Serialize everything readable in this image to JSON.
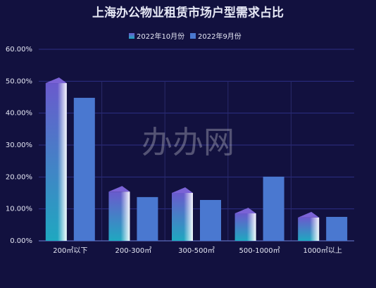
{
  "chart_data": {
    "type": "bar",
    "title": "上海办公物业租赁市场户型需求占比",
    "watermark": "办办网",
    "categories": [
      "200㎡以下",
      "200-300㎡",
      "300-500㎡",
      "500-1000㎡",
      "1000㎡以上"
    ],
    "series": [
      {
        "name": "2022年10月份",
        "color": "#6a5acd",
        "values": [
          49.4,
          15.4,
          15,
          8.6,
          7.3
        ]
      },
      {
        "name": "2022年9月份",
        "color": "#4a78d0",
        "values": [
          44.8,
          13.7,
          12.8,
          20.1,
          7.5
        ]
      }
    ],
    "ylim": [
      0,
      60
    ],
    "yticks": [
      {
        "value": 0,
        "label": "0.00%"
      },
      {
        "value": 10,
        "label": "10.00%"
      },
      {
        "value": 20,
        "label": "20.00%"
      },
      {
        "value": 30,
        "label": "30.00%"
      },
      {
        "value": 40,
        "label": "40.00%"
      },
      {
        "value": 50,
        "label": "50.00%"
      },
      {
        "value": 60,
        "label": "60.00%"
      }
    ],
    "grid": true,
    "legend": "top"
  }
}
